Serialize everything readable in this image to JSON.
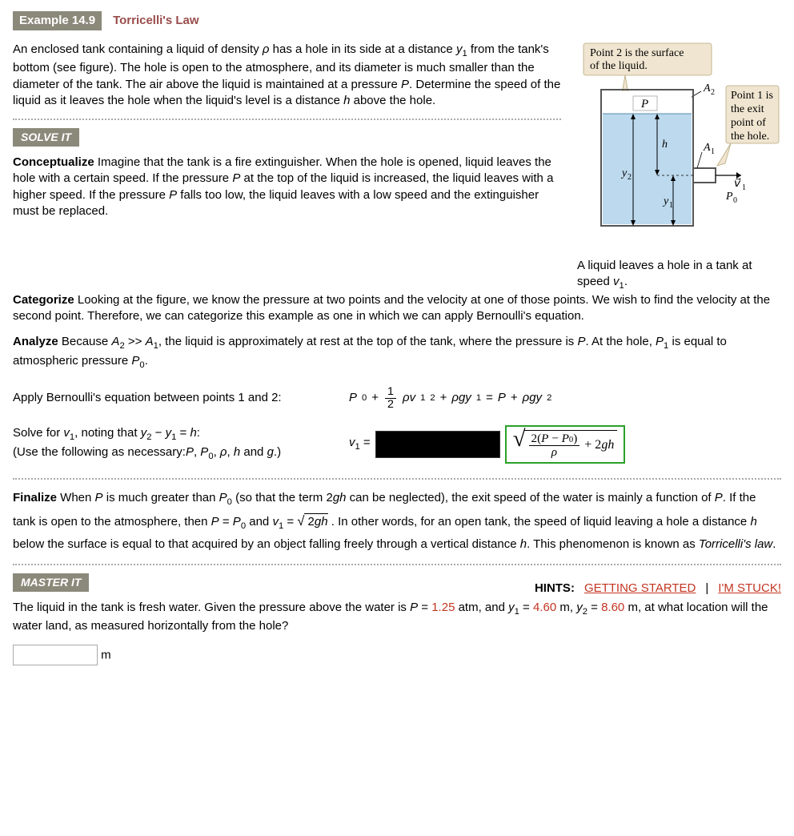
{
  "example": {
    "badge": "Example 14.9",
    "title": "Torricelli's Law"
  },
  "problem_html": "An enclosed tank containing a liquid of density <span class='italic'>ρ</span> has a hole in its side at a distance  <span class='italic'>y</span><span class='sub'>1</span>  from the tank's bottom (see figure). The hole is open to the atmosphere, and its diameter is much smaller than the diameter of the tank. The air above the liquid is maintained at a pressure <span class='italic'>P</span>. Determine the speed of the liquid as it leaves the hole when the liquid's level is a distance <span class='italic'>h</span> above the hole.",
  "solveit_badge": "SOLVE IT",
  "conceptualize": {
    "label": "Conceptualize",
    "html": " Imagine that the tank is a fire extinguisher. When the hole is opened, liquid leaves the hole with a certain speed. If the pressure <span class='italic'>P</span> at the top of the liquid is increased, the liquid leaves with a higher speed. If the pressure <span class='italic'>P</span> falls too low, the liquid leaves with a low speed and the extinguisher must be replaced."
  },
  "categorize": {
    "label": "Categorize",
    "html": " Looking at the figure, we know the pressure at two points and the velocity at one of those points. We wish to find the velocity at the second point. Therefore, we can categorize this example as one in which we can apply Bernoulli's equation."
  },
  "analyze": {
    "label": "Analyze",
    "html": " Because <span class='italic'>A</span><span class='sub'>2</span> >> <span class='italic'>A</span><span class='sub'>1</span>, the liquid is approximately at rest at the top of the tank, where the pressure is <span class='italic'>P</span>. At the hole, <span class='italic'>P</span><span class='sub'>1</span> is equal to atmospheric pressure <span class='italic'>P</span><span class='sub'>0</span>."
  },
  "step1": {
    "text": "Apply Bernoulli's equation between points 1 and 2:",
    "eq_html": "<span class='italic'>P</span><span class='sub'>0</span> + <span class='frac'><span class='num'>1</span><span class='den'>2</span></span><span class='italic'>ρv</span><span class='sub'>1</span><span class='sup'>2</span> + <span class='italic'>ρgy</span><span class='sub'>1</span> = <span class='italic'>P</span> + <span class='italic'>ρgy</span><span class='sub'>2</span>"
  },
  "step2": {
    "text_html": "Solve for <span class='italic'>v</span><span class='sub'>1</span>, noting that  <span class='italic'>y</span><span class='sub'>2</span> − <span class='italic'>y</span><span class='sub'>1</span> = <span class='italic'>h</span>:<br>(Use the following as necessary:<span class='italic'>P</span>, <span class='italic'>P</span><span class='sub'>0</span>, <span class='italic'>ρ</span>, <span class='italic'>h</span> and <span class='italic'>g</span>.)",
    "lhs_html": "<span class='italic'>v</span><span class='sub'>1</span> =",
    "answer_html": "<span class='sqrt'><span class='sqrt-sym'>√</span><span class='sqrt-body'><span class='frac'><span class='num'>2(<span class=\"italic\">P</span> − <span class=\"italic\">P</span><span style=\"font-size:0.7em\">0</span>)</span><span class='den'><span class=\"italic\">ρ</span></span></span> + 2<span class='italic'>gh</span></span></span>"
  },
  "finalize": {
    "label": "Finalize",
    "html": " When <span class='italic'>P</span> is much greater than <span class='italic'>P</span><span class='sub'>0</span> (so that the term 2<span class='italic'>gh</span> can be neglected), the exit speed of the water is mainly a function of <span class='italic'>P</span>. If the tank is open to the atmosphere, then <span class='italic'>P</span> = <span class='italic'>P</span><span class='sub'>0</span> and <span class='italic'>v</span><span class='sub'>1</span> = <span style='font-size:1.1em'>√</span><span style='border-top:1px solid #000;padding-top:1px'> 2<span class=\"italic\">gh</span></span> .  In other words, for an open tank, the speed of liquid leaving a hole a distance <span class='italic'>h</span> below the surface is equal to that acquired by an object falling freely through a vertical distance <span class='italic'>h</span>. This phenomenon is known as <span class='italic'>Torricelli's law</span>."
  },
  "masterit_badge": "MASTER IT",
  "hints": {
    "label": "HINTS:",
    "getting_started": "GETTING STARTED",
    "sep": "|",
    "stuck": "I'M STUCK!"
  },
  "masterit_q_html": "The liquid in the tank is fresh water. Given the pressure above the water is <span class='italic'>P</span> = <span class='red'>1.25</span> atm, and <span class='italic'>y</span><span class='sub'>1</span> = <span class='red'>4.60</span> m, <span class='italic'>y</span><span class='sub'>2</span> = <span class='red'>8.60</span> m, at what location will the water land, as measured horizontally from the hole?",
  "unit": "m",
  "figure": {
    "callout2": "Point 2 is the surface of the liquid.",
    "callout1_l1": "Point 1 is",
    "callout1_l2": "the exit",
    "callout1_l3": "point of",
    "callout1_l4": "the hole.",
    "caption_html": "A liquid leaves a hole in a tank at speed <span class='italic'>v</span><span class='sub'>1</span>."
  }
}
